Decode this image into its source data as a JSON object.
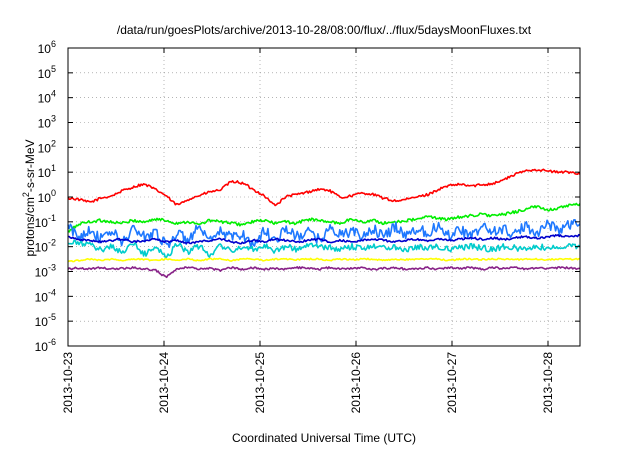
{
  "chart_data": {
    "type": "line",
    "title": "/data/run/goesPlots/archive/2013-10-28/08:00/flux/../flux/5daysMoonFluxes.txt",
    "xlabel": "Coordinated Universal Time (UTC)",
    "ylabel_parts": [
      "protons/cm",
      "2",
      "-s-sr-MeV"
    ],
    "y_scale": "log",
    "ylim": [
      1e-06,
      1000000.0
    ],
    "y_tick_exponents": [
      -6,
      -5,
      -4,
      -3,
      -2,
      -1,
      0,
      1,
      2,
      3,
      4,
      5,
      6
    ],
    "y_tick_base": "10",
    "xlim": [
      "2013-10-23 00:00",
      "2013-10-28 08:00"
    ],
    "x_ticks": [
      "2013-10-23",
      "2013-10-24",
      "2013-10-25",
      "2013-10-26",
      "2013-10-27",
      "2013-10-28"
    ],
    "grid": true,
    "legend": "none",
    "series": [
      {
        "color": "#ff0000",
        "log10_values": [
          -0.05,
          -0.1,
          -0.2,
          -0.05,
          0.05,
          0.25,
          0.4,
          0.5,
          0.3,
          0.05,
          -0.3,
          -0.1,
          0.05,
          0.2,
          0.3,
          0.6,
          0.55,
          0.3,
          0.05,
          -0.3,
          0.0,
          0.1,
          0.2,
          0.3,
          0.25,
          0.0,
          0.05,
          0.15,
          0.1,
          -0.05,
          -0.15,
          -0.1,
          0.0,
          0.1,
          0.3,
          0.45,
          0.5,
          0.45,
          0.5,
          0.55,
          0.7,
          0.9,
          1.05,
          1.1,
          1.05,
          1.0,
          1.0,
          0.95
        ]
      },
      {
        "color": "#00ee00",
        "log10_values": [
          -1.4,
          -1.1,
          -1.0,
          -0.95,
          -1.0,
          -1.05,
          -0.95,
          -1.0,
          -0.9,
          -0.95,
          -1.05,
          -1.0,
          -1.1,
          -0.95,
          -1.0,
          -1.05,
          -1.1,
          -1.0,
          -0.95,
          -1.05,
          -1.0,
          -1.05,
          -0.9,
          -0.95,
          -1.0,
          -1.05,
          -0.9,
          -1.0,
          -0.95,
          -1.05,
          -1.0,
          -0.95,
          -0.9,
          -0.8,
          -0.85,
          -0.9,
          -0.8,
          -0.75,
          -0.7,
          -0.75,
          -0.7,
          -0.6,
          -0.5,
          -0.4,
          -0.5,
          -0.45,
          -0.35,
          -0.3
        ]
      },
      {
        "color": "#1e78ff",
        "log10_values": [
          -1.2,
          -1.6,
          -1.3,
          -1.7,
          -1.4,
          -1.8,
          -1.3,
          -1.6,
          -1.4,
          -1.9,
          -1.5,
          -1.7,
          -1.3,
          -1.8,
          -1.4,
          -1.6,
          -1.5,
          -1.9,
          -1.4,
          -1.7,
          -1.3,
          -1.6,
          -1.4,
          -1.7,
          -1.3,
          -1.5,
          -1.4,
          -1.6,
          -1.3,
          -1.6,
          -1.2,
          -1.5,
          -1.3,
          -1.4,
          -1.2,
          -1.5,
          -1.3,
          -1.6,
          -1.2,
          -1.4,
          -1.3,
          -1.5,
          -1.2,
          -1.4,
          -1.1,
          -1.3,
          -1.1,
          -1.0
        ]
      },
      {
        "color": "#00cccc",
        "log10_values": [
          -1.9,
          -1.85,
          -1.95,
          -2.1,
          -2.0,
          -2.2,
          -1.9,
          -2.3,
          -2.0,
          -2.4,
          -1.9,
          -2.2,
          -2.0,
          -2.3,
          -1.95,
          -2.2,
          -2.0,
          -2.1,
          -1.95,
          -2.15,
          -2.0,
          -2.1,
          -1.95,
          -2.0,
          -2.05,
          -2.1,
          -2.0,
          -2.05,
          -1.95,
          -2.05,
          -2.0,
          -2.1,
          -2.0,
          -2.05,
          -2.0,
          -2.1,
          -2.05,
          -2.0,
          -2.05,
          -2.1,
          -2.0,
          -2.05,
          -2.1,
          -2.0,
          -2.05,
          -2.0,
          -2.0,
          -1.95
        ]
      },
      {
        "color": "#0000cc",
        "log10_values": [
          -1.6,
          -1.7,
          -1.75,
          -1.8,
          -1.75,
          -1.7,
          -1.8,
          -1.75,
          -1.7,
          -1.8,
          -1.75,
          -1.85,
          -1.8,
          -1.75,
          -1.7,
          -1.8,
          -1.85,
          -1.75,
          -1.8,
          -1.7,
          -1.75,
          -1.8,
          -1.75,
          -1.7,
          -1.8,
          -1.75,
          -1.8,
          -1.75,
          -1.7,
          -1.75,
          -1.8,
          -1.75,
          -1.7,
          -1.75,
          -1.7,
          -1.75,
          -1.7,
          -1.65,
          -1.7,
          -1.65,
          -1.7,
          -1.65,
          -1.6,
          -1.65,
          -1.6,
          -1.55,
          -1.6,
          -1.55
        ]
      },
      {
        "color": "#ffff00",
        "log10_values": [
          -2.6,
          -2.55,
          -2.5,
          -2.55,
          -2.5,
          -2.55,
          -2.5,
          -2.52,
          -2.55,
          -2.5,
          -2.55,
          -2.5,
          -2.55,
          -2.5,
          -2.5,
          -2.55,
          -2.5,
          -2.5,
          -2.55,
          -2.5,
          -2.5,
          -2.52,
          -2.5,
          -2.5,
          -2.55,
          -2.5,
          -2.52,
          -2.5,
          -2.5,
          -2.55,
          -2.5,
          -2.52,
          -2.5,
          -2.5,
          -2.5,
          -2.55,
          -2.5,
          -2.5,
          -2.52,
          -2.5,
          -2.5,
          -2.52,
          -2.5,
          -2.5,
          -2.52,
          -2.5,
          -2.5,
          -2.5
        ]
      },
      {
        "color": "#882288",
        "log10_values": [
          -2.9,
          -2.85,
          -2.9,
          -2.85,
          -2.9,
          -2.88,
          -2.85,
          -2.9,
          -2.95,
          -3.2,
          -2.9,
          -2.85,
          -2.9,
          -2.88,
          -2.95,
          -2.85,
          -2.9,
          -2.85,
          -2.9,
          -2.88,
          -2.9,
          -2.85,
          -2.88,
          -2.9,
          -2.85,
          -2.9,
          -2.88,
          -2.85,
          -2.9,
          -2.88,
          -2.85,
          -2.9,
          -2.88,
          -2.85,
          -2.9,
          -2.85,
          -2.88,
          -2.85,
          -2.9,
          -2.85,
          -2.88,
          -2.85,
          -2.9,
          -2.85,
          -2.88,
          -2.85,
          -2.85,
          -2.9
        ]
      }
    ]
  }
}
